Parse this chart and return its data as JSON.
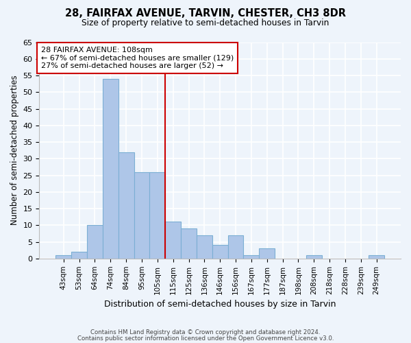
{
  "title": "28, FAIRFAX AVENUE, TARVIN, CHESTER, CH3 8DR",
  "subtitle": "Size of property relative to semi-detached houses in Tarvin",
  "xlabel": "Distribution of semi-detached houses by size in Tarvin",
  "ylabel": "Number of semi-detached properties",
  "bin_labels": [
    "43sqm",
    "53sqm",
    "64sqm",
    "74sqm",
    "84sqm",
    "95sqm",
    "105sqm",
    "115sqm",
    "125sqm",
    "136sqm",
    "146sqm",
    "156sqm",
    "167sqm",
    "177sqm",
    "187sqm",
    "198sqm",
    "208sqm",
    "218sqm",
    "228sqm",
    "239sqm",
    "249sqm"
  ],
  "bin_values": [
    1,
    2,
    10,
    54,
    32,
    26,
    26,
    11,
    9,
    7,
    4,
    7,
    1,
    3,
    0,
    0,
    1,
    0,
    0,
    0,
    1
  ],
  "bar_color": "#aec6e8",
  "bar_edge_color": "#7bafd4",
  "vline_color": "#cc0000",
  "vline_position": 6.5,
  "ylim": [
    0,
    65
  ],
  "yticks": [
    0,
    5,
    10,
    15,
    20,
    25,
    30,
    35,
    40,
    45,
    50,
    55,
    60,
    65
  ],
  "annotation_text": "28 FAIRFAX AVENUE: 108sqm\n← 67% of semi-detached houses are smaller (129)\n27% of semi-detached houses are larger (52) →",
  "annotation_box_facecolor": "#ffffff",
  "annotation_box_edgecolor": "#cc0000",
  "footer_line1": "Contains HM Land Registry data © Crown copyright and database right 2024.",
  "footer_line2": "Contains public sector information licensed under the Open Government Licence v3.0.",
  "background_color": "#eef4fb",
  "grid_color": "#ffffff"
}
